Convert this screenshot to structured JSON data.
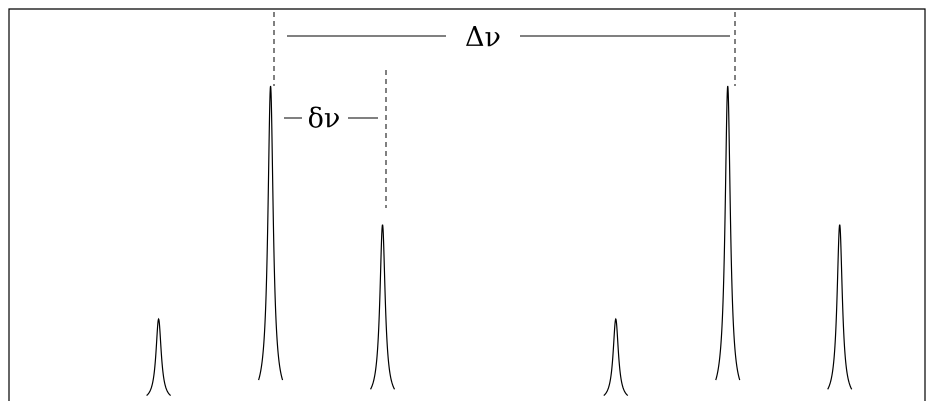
{
  "annotations": {
    "large_spacing_label": "Δν",
    "small_spacing_label": "δν"
  },
  "chart_data": {
    "type": "line",
    "title": "",
    "xlabel": "",
    "ylabel": "",
    "grid": false,
    "series": [
      {
        "peaks": [
          {
            "x": 0.17,
            "height": 0.26
          },
          {
            "x": 0.29,
            "height": 1.0
          },
          {
            "x": 0.41,
            "height": 0.56
          },
          {
            "x": 0.66,
            "height": 0.26
          },
          {
            "x": 0.78,
            "height": 1.0
          },
          {
            "x": 0.9,
            "height": 0.56
          }
        ]
      }
    ],
    "spacings": {
      "large": {
        "from_peak": 1,
        "to_peak": 4,
        "label": "Δν"
      },
      "small": {
        "from_peak": 1,
        "to_peak": 2,
        "label": "δν"
      }
    }
  }
}
